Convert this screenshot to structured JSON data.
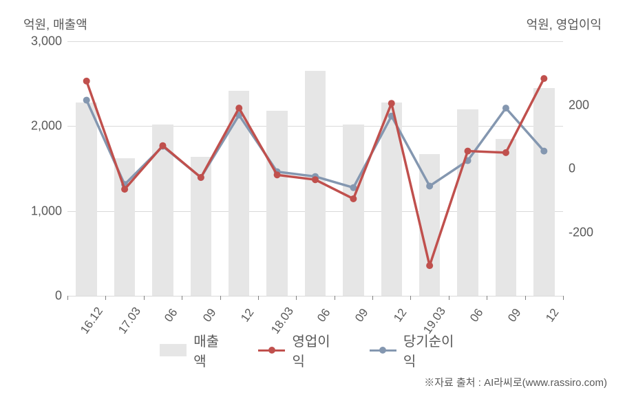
{
  "chart": {
    "type": "combo-bar-line",
    "left_axis_label": "억원, 매출액",
    "right_axis_label": "억원, 영업이익",
    "background_color": "#ffffff",
    "grid_color": "#d9d9d9",
    "text_color": "#595959",
    "bar_color": "#e6e6e6",
    "categories": [
      "16.12",
      "17.03",
      "06",
      "09",
      "12",
      "18.03",
      "06",
      "09",
      "12",
      "19.03",
      "06",
      "09",
      "12"
    ],
    "left_axis": {
      "ylim": [
        0,
        3000
      ],
      "ticks": [
        0,
        1000,
        2000,
        3000
      ],
      "tick_labels": [
        "0",
        "1,000",
        "2,000",
        "3,000"
      ]
    },
    "right_axis": {
      "ylim": [
        -400,
        400
      ],
      "ticks": [
        -200,
        0,
        200
      ],
      "tick_labels": [
        "-200",
        "0",
        "200"
      ]
    },
    "series": {
      "revenue": {
        "label": "매출액",
        "type": "bar",
        "axis": "left",
        "color": "#e6e6e6",
        "values": [
          2280,
          1620,
          2020,
          1640,
          2420,
          2180,
          2650,
          2020,
          2280,
          1670,
          2200,
          1850,
          2450
        ],
        "bar_width_ratio": 0.55
      },
      "operating_profit": {
        "label": "영업이익",
        "type": "line",
        "axis": "right",
        "color": "#c0504d",
        "line_width": 3.5,
        "marker_size": 5,
        "values": [
          275,
          -65,
          72,
          -28,
          190,
          -20,
          -35,
          -95,
          205,
          -305,
          55,
          50,
          283
        ]
      },
      "net_income": {
        "label": "당기순이익",
        "type": "line",
        "axis": "right",
        "color": "#8497b0",
        "line_width": 3.5,
        "marker_size": 5,
        "values": [
          215,
          -50,
          70,
          -28,
          168,
          -10,
          -25,
          -60,
          165,
          -55,
          25,
          190,
          55
        ]
      }
    },
    "legend_items": [
      {
        "type": "bar",
        "label": "매출액",
        "color": "#e6e6e6"
      },
      {
        "type": "line",
        "label": "영업이익",
        "color": "#c0504d"
      },
      {
        "type": "line",
        "label": "당기순이익",
        "color": "#8497b0"
      }
    ],
    "source_text": "※자료 출처 : AI라씨로(www.rassiro.com)",
    "axis_fontsize": 18,
    "tick_fontsize": 18,
    "xtick_fontsize": 17,
    "legend_fontsize": 20,
    "source_fontsize": 15
  }
}
